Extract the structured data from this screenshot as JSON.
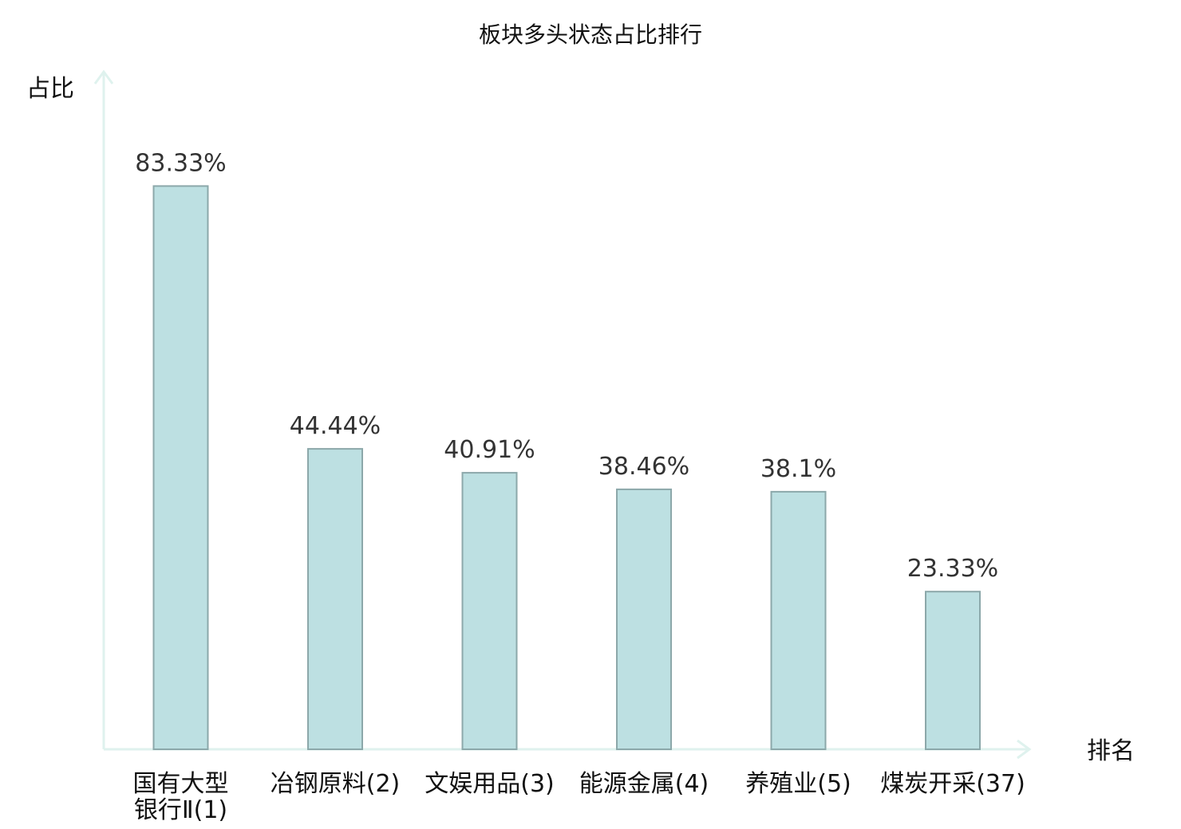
{
  "chart_data": {
    "type": "bar",
    "title": "板块多头状态占比排行",
    "xlabel": "排名",
    "ylabel": "占比",
    "categories": [
      [
        "国有大型",
        "银行Ⅱ(1)"
      ],
      [
        "冶钢原料(2)"
      ],
      [
        "文娱用品(3)"
      ],
      [
        "能源金属(4)"
      ],
      [
        "养殖业(5)"
      ],
      [
        "煤炭开采(37)"
      ]
    ],
    "values": [
      83.33,
      44.44,
      40.91,
      38.46,
      38.1,
      23.33
    ],
    "value_labels": [
      "83.33%",
      "44.44%",
      "40.91%",
      "38.46%",
      "38.1%",
      "23.33%"
    ],
    "ylim": [
      0,
      100
    ],
    "grid": false,
    "colors": {
      "bar_fill": "#bde0e2",
      "bar_stroke": "#8ca8aa",
      "axis": "#dff2ee",
      "highlight": "#e31414",
      "text": "#111111",
      "value_text": "#333333"
    },
    "highlight_index": 5
  }
}
